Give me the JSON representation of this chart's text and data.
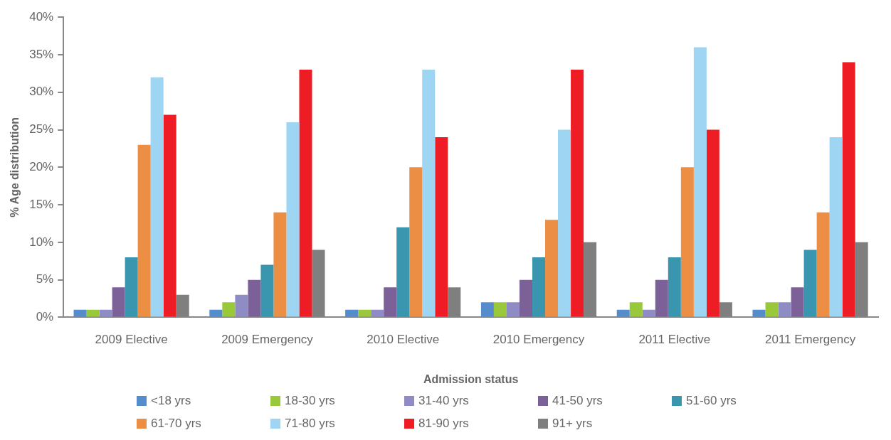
{
  "chart_data": {
    "type": "bar",
    "xlabel": "Admission status",
    "ylabel": "% Age distribution",
    "categories": [
      "2009 Elective",
      "2009 Emergency",
      "2010 Elective",
      "2010 Emergency",
      "2011 Elective",
      "2011 Emergency"
    ],
    "series": [
      {
        "name": "<18 yrs",
        "color": "#558ccb",
        "values": [
          1,
          1,
          1,
          2,
          1,
          1
        ]
      },
      {
        "name": "18-30 yrs",
        "color": "#99c93b",
        "values": [
          1,
          2,
          1,
          2,
          2,
          2
        ]
      },
      {
        "name": "31-40 yrs",
        "color": "#8f8bc4",
        "values": [
          1,
          3,
          1,
          2,
          1,
          2
        ]
      },
      {
        "name": "41-50 yrs",
        "color": "#7c6199",
        "values": [
          4,
          5,
          4,
          5,
          5,
          4
        ]
      },
      {
        "name": "51-60 yrs",
        "color": "#3996ae",
        "values": [
          8,
          7,
          12,
          8,
          8,
          9
        ]
      },
      {
        "name": "61-70 yrs",
        "color": "#ec8e44",
        "values": [
          23,
          14,
          20,
          13,
          20,
          14
        ]
      },
      {
        "name": "71-80 yrs",
        "color": "#9dd5f2",
        "values": [
          32,
          26,
          33,
          25,
          36,
          24
        ]
      },
      {
        "name": "81-90 yrs",
        "color": "#ee1c25",
        "values": [
          27,
          33,
          24,
          33,
          25,
          34
        ]
      },
      {
        "name": "91+ yrs",
        "color": "#7f7f80",
        "values": [
          3,
          9,
          4,
          10,
          2,
          10
        ]
      }
    ],
    "ylim": [
      0,
      40
    ],
    "yticks": [
      {
        "value": 0,
        "label": "0%"
      },
      {
        "value": 5,
        "label": "5%"
      },
      {
        "value": 10,
        "label": "10%"
      },
      {
        "value": 15,
        "label": "15%"
      },
      {
        "value": 20,
        "label": "20%"
      },
      {
        "value": 25,
        "label": "25%"
      },
      {
        "value": 30,
        "label": "30%"
      },
      {
        "value": 35,
        "label": "35%"
      },
      {
        "value": 40,
        "label": "40%"
      }
    ],
    "grid": false,
    "legend": "bottom"
  }
}
